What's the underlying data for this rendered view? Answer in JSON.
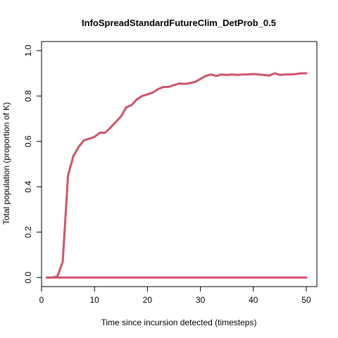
{
  "chart_data": {
    "type": "line",
    "title": "InfoSpreadStandardFutureClim_DetProb_0.5",
    "xlabel": "Time since incursion detected (timesteps)",
    "ylabel": "Total population (proportion of K)",
    "xlim": [
      0,
      52
    ],
    "ylim": [
      -0.04,
      1.04
    ],
    "x_ticks": [
      "0",
      "10",
      "20",
      "30",
      "40",
      "50"
    ],
    "y_ticks": [
      "0.0",
      "0.2",
      "0.4",
      "0.6",
      "0.8",
      "1.0"
    ],
    "grid": false,
    "legend": "none",
    "line_color": "#D1526B",
    "series": [
      {
        "x": [
          1,
          2,
          3,
          4,
          5,
          6,
          7,
          8,
          9,
          10,
          11,
          12,
          13,
          14,
          15,
          16,
          17,
          18,
          19,
          20,
          21,
          22,
          23,
          24,
          25,
          26,
          27,
          28,
          29,
          30,
          31,
          32,
          33,
          34,
          35,
          36,
          37,
          38,
          39,
          40,
          41,
          42,
          43,
          44,
          45,
          46,
          47,
          48,
          49,
          50
        ],
        "values": [
          0.0,
          0.0,
          0.005,
          0.07,
          0.45,
          0.535,
          0.575,
          0.605,
          0.612,
          0.62,
          0.638,
          0.638,
          0.66,
          0.685,
          0.71,
          0.75,
          0.76,
          0.785,
          0.8,
          0.807,
          0.815,
          0.83,
          0.84,
          0.84,
          0.848,
          0.855,
          0.853,
          0.857,
          0.862,
          0.875,
          0.888,
          0.895,
          0.888,
          0.895,
          0.893,
          0.895,
          0.893,
          0.895,
          0.895,
          0.897,
          0.895,
          0.893,
          0.89,
          0.9,
          0.893,
          0.895,
          0.895,
          0.897,
          0.9,
          0.9
        ]
      },
      {
        "x": [
          1,
          50
        ],
        "values": [
          0.0,
          0.0
        ]
      }
    ]
  }
}
